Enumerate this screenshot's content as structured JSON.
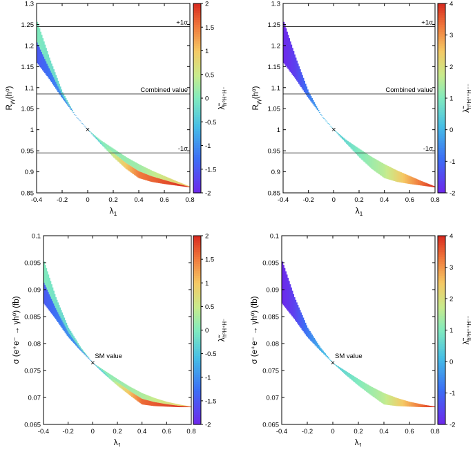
{
  "chart_data": [
    {
      "type": "scatter",
      "xlabel_main": "λ",
      "xlabel_sub": "1",
      "ylabel_main": "R",
      "ylabel_sub": "γγ",
      "ylabel_tail": "(h⁰)",
      "xlim": [
        -0.4,
        0.8
      ],
      "ylim": [
        0.85,
        1.3
      ],
      "xticks": [
        "-0.4",
        "-0.2",
        "0",
        "0.2",
        "0.4",
        "0.6",
        "0.8"
      ],
      "yticks": [
        "0.85",
        "0.9",
        "0.95",
        "1",
        "1.05",
        "1.1",
        "1.15",
        "1.2",
        "1.25",
        "1.3"
      ],
      "grid": false,
      "colorbar": {
        "label_main": "λ̃",
        "label_sub": "h⁰H⁺H⁻",
        "range": [
          -2,
          2
        ],
        "ticks": [
          "-2",
          "-1.5",
          "-1",
          "-0.5",
          "0",
          "0.5",
          "1",
          "1.5",
          "2"
        ]
      },
      "hlines": [
        {
          "y": 1.245,
          "label": "+1σ"
        },
        {
          "y": 1.085,
          "label": "Combined value"
        },
        {
          "y": 0.945,
          "label": "-1σ"
        }
      ],
      "marker": {
        "x": 0,
        "y": 1.0,
        "symbol": "×",
        "label": ""
      },
      "band": {
        "lower_edge": [
          [
            -0.4,
            1.16
          ],
          [
            -0.3,
            1.12
          ],
          [
            -0.2,
            1.075
          ],
          [
            -0.1,
            1.035
          ],
          [
            0,
            1.0
          ],
          [
            0.1,
            0.967
          ],
          [
            0.2,
            0.935
          ],
          [
            0.3,
            0.907
          ],
          [
            0.4,
            0.885
          ],
          [
            0.5,
            0.876
          ],
          [
            0.6,
            0.871
          ],
          [
            0.7,
            0.867
          ],
          [
            0.8,
            0.863
          ]
        ],
        "upper_edge": [
          [
            -0.4,
            1.26
          ],
          [
            -0.3,
            1.17
          ],
          [
            -0.2,
            1.09
          ],
          [
            -0.1,
            1.035
          ],
          [
            0,
            1.0
          ],
          [
            0.1,
            0.975
          ],
          [
            0.2,
            0.955
          ],
          [
            0.3,
            0.935
          ],
          [
            0.4,
            0.918
          ],
          [
            0.5,
            0.903
          ],
          [
            0.6,
            0.89
          ],
          [
            0.7,
            0.877
          ],
          [
            0.8,
            0.865
          ]
        ],
        "color_at_upper_edge": [
          [
            -0.4,
            0.0
          ],
          [
            -0.2,
            -0.3
          ],
          [
            0,
            0.0
          ],
          [
            0.4,
            0.2
          ],
          [
            0.8,
            1.0
          ]
        ],
        "color_at_lower_edge": [
          [
            -0.4,
            -1.5
          ],
          [
            -0.2,
            -1.0
          ],
          [
            0,
            -1.0
          ],
          [
            0.2,
            0.5
          ],
          [
            0.4,
            1.5
          ],
          [
            0.8,
            2.0
          ]
        ]
      }
    },
    {
      "type": "scatter",
      "xlabel_main": "λ",
      "xlabel_sub": "1",
      "ylabel_main": "R",
      "ylabel_sub": "γγ",
      "ylabel_tail": "(h⁰)",
      "xlim": [
        -0.4,
        0.8
      ],
      "ylim": [
        0.85,
        1.3
      ],
      "xticks": [
        "-0.4",
        "-0.2",
        "0",
        "0.2",
        "0.4",
        "0.6",
        "0.8"
      ],
      "yticks": [
        "0.85",
        "0.9",
        "0.95",
        "1",
        "1.05",
        "1.1",
        "1.15",
        "1.2",
        "1.25",
        "1.3"
      ],
      "grid": false,
      "colorbar": {
        "label_main": "λ̃",
        "label_sub": "h⁰H⁺⁺H⁻⁻",
        "range": [
          -2,
          4
        ],
        "ticks": [
          "-2",
          "-1",
          "0",
          "1",
          "2",
          "3",
          "4"
        ]
      },
      "hlines": [
        {
          "y": 1.245,
          "label": "+1σ"
        },
        {
          "y": 1.085,
          "label": "Combined value"
        },
        {
          "y": 0.945,
          "label": "-1σ"
        }
      ],
      "marker": {
        "x": 0,
        "y": 1.0,
        "symbol": "×",
        "label": ""
      },
      "band": {
        "lower_edge": [
          [
            -0.4,
            1.16
          ],
          [
            -0.3,
            1.12
          ],
          [
            -0.2,
            1.075
          ],
          [
            -0.1,
            1.035
          ],
          [
            0,
            1.0
          ],
          [
            0.1,
            0.967
          ],
          [
            0.2,
            0.935
          ],
          [
            0.3,
            0.907
          ],
          [
            0.4,
            0.885
          ],
          [
            0.5,
            0.876
          ],
          [
            0.6,
            0.871
          ],
          [
            0.7,
            0.867
          ],
          [
            0.8,
            0.863
          ]
        ],
        "upper_edge": [
          [
            -0.4,
            1.26
          ],
          [
            -0.3,
            1.17
          ],
          [
            -0.2,
            1.09
          ],
          [
            -0.1,
            1.035
          ],
          [
            0,
            1.0
          ],
          [
            0.1,
            0.975
          ],
          [
            0.2,
            0.955
          ],
          [
            0.3,
            0.935
          ],
          [
            0.4,
            0.918
          ],
          [
            0.5,
            0.903
          ],
          [
            0.6,
            0.89
          ],
          [
            0.7,
            0.877
          ],
          [
            0.8,
            0.865
          ]
        ],
        "color_by_x": [
          [
            -0.4,
            -2.0
          ],
          [
            -0.3,
            -1.6
          ],
          [
            -0.2,
            -0.8
          ],
          [
            -0.1,
            -0.1
          ],
          [
            0,
            0.3
          ],
          [
            0.2,
            1.0
          ],
          [
            0.4,
            1.6
          ],
          [
            0.6,
            2.8
          ],
          [
            0.8,
            4.0
          ]
        ]
      }
    },
    {
      "type": "scatter",
      "xlabel_main": "λ",
      "xlabel_sub": "1",
      "ylabel_main": "σ (e⁺e⁻ → γh⁰) (fb)",
      "ylabel_sub": "",
      "ylabel_tail": "",
      "xlim": [
        -0.4,
        0.8
      ],
      "ylim": [
        0.065,
        0.1
      ],
      "xticks": [
        "-0.4",
        "-0.2",
        "0",
        "0.2",
        "0.4",
        "0.6",
        "0.8"
      ],
      "yticks": [
        "0.065",
        "0.07",
        "0.075",
        "0.08",
        "0.085",
        "0.09",
        "0.095",
        "0.1"
      ],
      "grid": false,
      "colorbar": {
        "label_main": "λ̃",
        "label_sub": "h⁰H⁺H⁻",
        "range": [
          -2,
          2
        ],
        "ticks": [
          "-2",
          "-1.5",
          "-1",
          "-0.5",
          "0",
          "0.5",
          "1",
          "1.5",
          "2"
        ]
      },
      "hlines": [],
      "marker": {
        "x": 0,
        "y": 0.0764,
        "symbol": "×",
        "label": "SM value"
      },
      "band": {
        "lower_edge": [
          [
            -0.4,
            0.0875
          ],
          [
            -0.3,
            0.0845
          ],
          [
            -0.2,
            0.0812
          ],
          [
            -0.1,
            0.0787
          ],
          [
            0,
            0.0764
          ],
          [
            0.1,
            0.0742
          ],
          [
            0.2,
            0.0722
          ],
          [
            0.3,
            0.0704
          ],
          [
            0.4,
            0.0687
          ],
          [
            0.5,
            0.0684
          ],
          [
            0.6,
            0.0683
          ],
          [
            0.7,
            0.0682
          ],
          [
            0.8,
            0.0682
          ]
        ],
        "upper_edge": [
          [
            -0.4,
            0.0955
          ],
          [
            -0.3,
            0.0885
          ],
          [
            -0.2,
            0.083
          ],
          [
            -0.1,
            0.0793
          ],
          [
            0,
            0.0764
          ],
          [
            0.1,
            0.0749
          ],
          [
            0.2,
            0.0734
          ],
          [
            0.3,
            0.072
          ],
          [
            0.4,
            0.0708
          ],
          [
            0.5,
            0.0699
          ],
          [
            0.6,
            0.0692
          ],
          [
            0.7,
            0.0687
          ],
          [
            0.8,
            0.0683
          ]
        ],
        "color_at_upper_edge": [
          [
            -0.4,
            0.0
          ],
          [
            -0.2,
            -0.3
          ],
          [
            0,
            0.0
          ],
          [
            0.4,
            0.3
          ],
          [
            0.8,
            1.0
          ]
        ],
        "color_at_lower_edge": [
          [
            -0.4,
            -1.5
          ],
          [
            -0.2,
            -1.0
          ],
          [
            0,
            -1.0
          ],
          [
            0.2,
            0.5
          ],
          [
            0.4,
            1.6
          ],
          [
            0.8,
            2.0
          ]
        ]
      }
    },
    {
      "type": "scatter",
      "xlabel_main": "λ",
      "xlabel_sub": "1",
      "ylabel_main": "σ (e⁺e⁻ → γh⁰) (fb)",
      "ylabel_sub": "",
      "ylabel_tail": "",
      "xlim": [
        -0.4,
        0.8
      ],
      "ylim": [
        0.065,
        0.1
      ],
      "xticks": [
        "-0.4",
        "-0.2",
        "0",
        "0.2",
        "0.4",
        "0.6",
        "0.8"
      ],
      "yticks": [
        "0.065",
        "0.07",
        "0.075",
        "0.08",
        "0.085",
        "0.09",
        "0.095",
        "0.1"
      ],
      "grid": false,
      "colorbar": {
        "label_main": "λ̃",
        "label_sub": "h⁰H⁺⁺H⁻⁻",
        "range": [
          -2,
          4
        ],
        "ticks": [
          "-2",
          "-1",
          "0",
          "1",
          "2",
          "3",
          "4"
        ]
      },
      "hlines": [],
      "marker": {
        "x": 0,
        "y": 0.0764,
        "symbol": "×",
        "label": "SM value"
      },
      "band": {
        "lower_edge": [
          [
            -0.4,
            0.0875
          ],
          [
            -0.3,
            0.0845
          ],
          [
            -0.2,
            0.0812
          ],
          [
            -0.1,
            0.0787
          ],
          [
            0,
            0.0764
          ],
          [
            0.1,
            0.0742
          ],
          [
            0.2,
            0.0722
          ],
          [
            0.3,
            0.0704
          ],
          [
            0.4,
            0.0687
          ],
          [
            0.5,
            0.0684
          ],
          [
            0.6,
            0.0683
          ],
          [
            0.7,
            0.0682
          ],
          [
            0.8,
            0.0682
          ]
        ],
        "upper_edge": [
          [
            -0.4,
            0.0955
          ],
          [
            -0.3,
            0.0885
          ],
          [
            -0.2,
            0.083
          ],
          [
            -0.1,
            0.0793
          ],
          [
            0,
            0.0764
          ],
          [
            0.1,
            0.0749
          ],
          [
            0.2,
            0.0734
          ],
          [
            0.3,
            0.072
          ],
          [
            0.4,
            0.0708
          ],
          [
            0.5,
            0.0699
          ],
          [
            0.6,
            0.0692
          ],
          [
            0.7,
            0.0687
          ],
          [
            0.8,
            0.0683
          ]
        ],
        "color_by_x": [
          [
            -0.4,
            -2.0
          ],
          [
            -0.3,
            -1.6
          ],
          [
            -0.2,
            -0.8
          ],
          [
            -0.1,
            -0.1
          ],
          [
            0,
            0.3
          ],
          [
            0.2,
            1.0
          ],
          [
            0.4,
            1.6
          ],
          [
            0.6,
            2.8
          ],
          [
            0.8,
            4.0
          ]
        ]
      }
    }
  ]
}
